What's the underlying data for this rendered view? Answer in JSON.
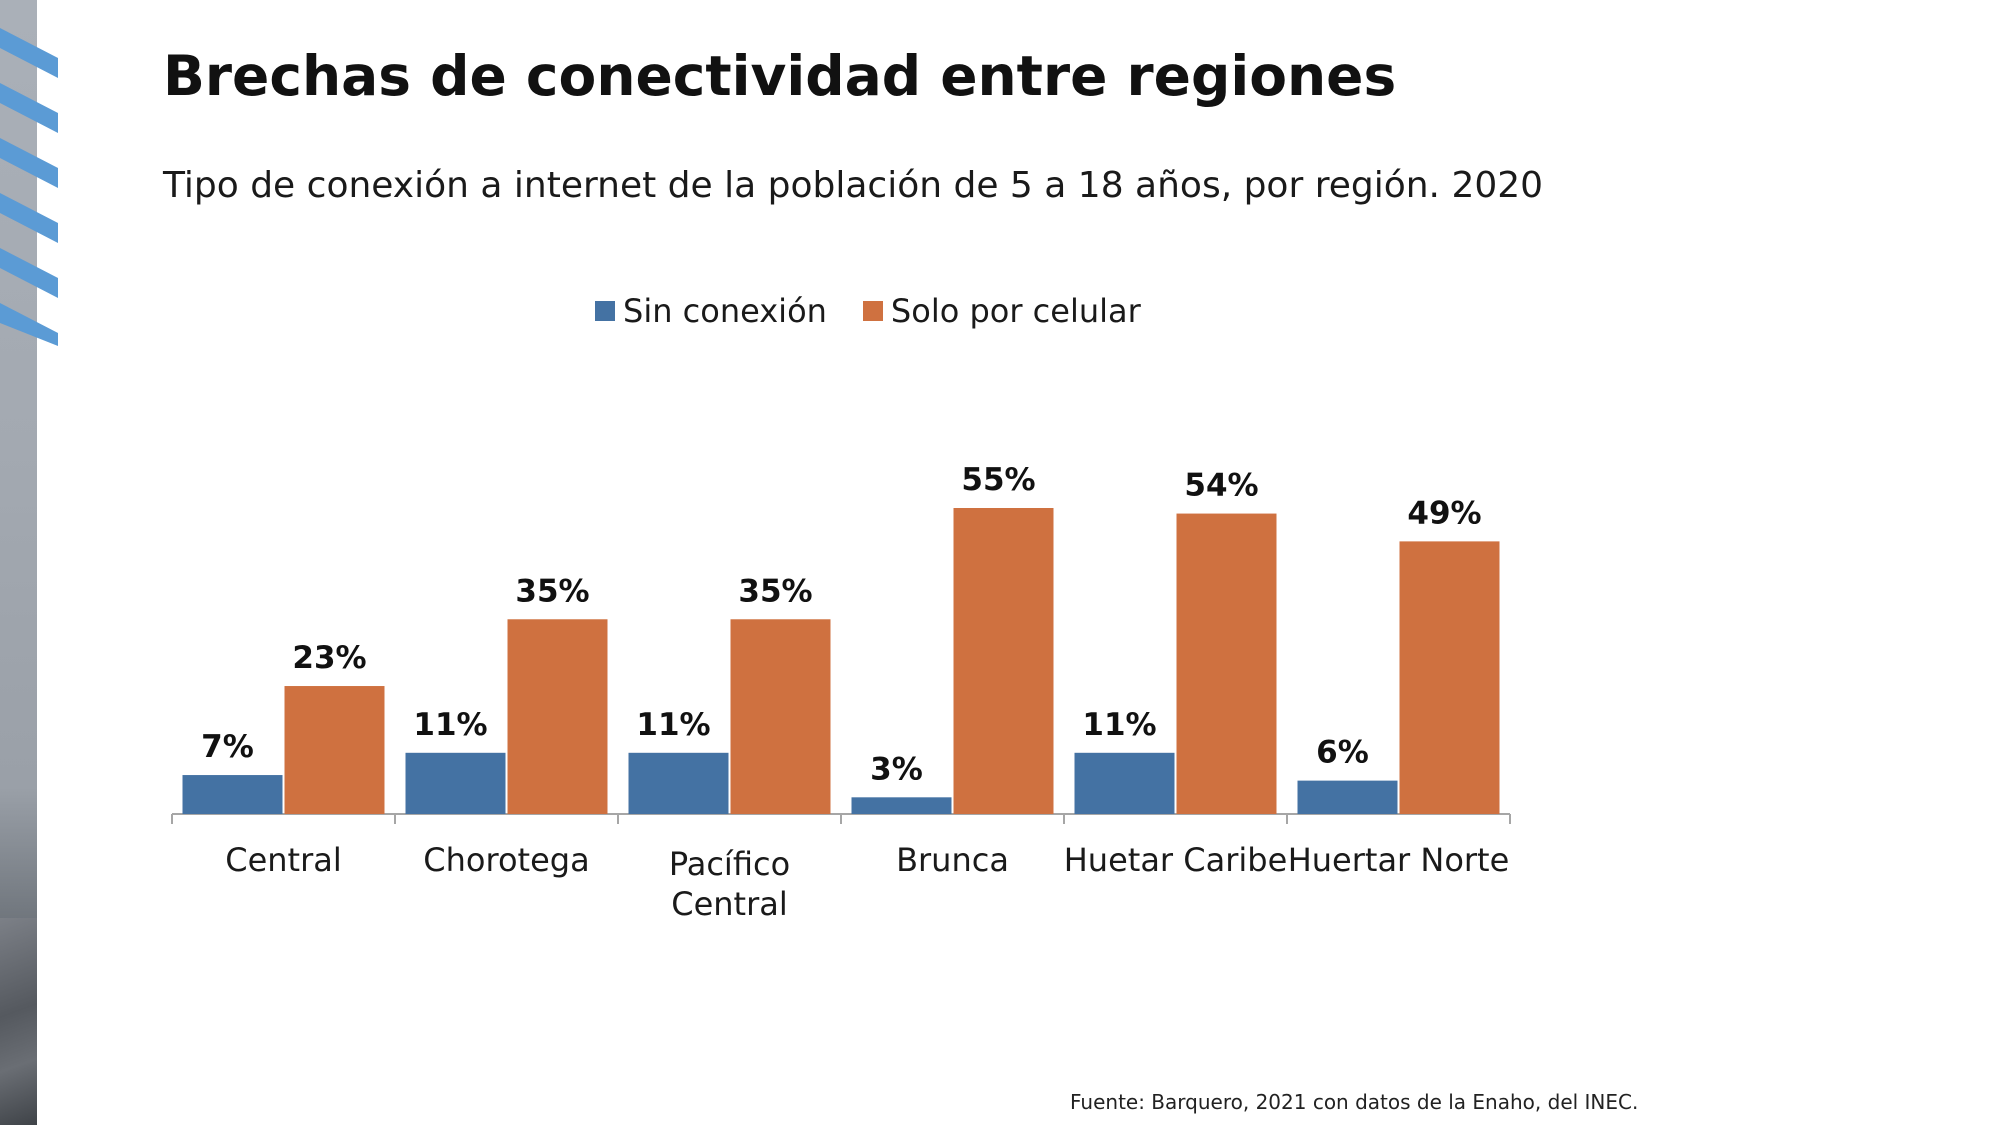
{
  "page": {
    "title": "Brechas de conectividad entre regiones",
    "subtitle": "Tipo de conexión a internet de la población de 5 a 18 años, por región. 2020",
    "source": "Fuente: Barquero, 2021 con datos de la Enaho, del INEC."
  },
  "colors": {
    "sin_conexion": "#4472a3",
    "solo_celular": "#cf7140",
    "accent_stripes": "#5b9bd5"
  },
  "chart_data": {
    "type": "bar",
    "categories": [
      "Central",
      "Chorotega",
      "Pacífico Central",
      "Brunca",
      "Huetar Caribe",
      "Huertar Norte"
    ],
    "series": [
      {
        "name": "Sin conexión",
        "values": [
          7,
          11,
          11,
          3,
          11,
          6
        ],
        "labels": [
          "7%",
          "11%",
          "11%",
          "3%",
          "11%",
          "6%"
        ]
      },
      {
        "name": "Solo por celular",
        "values": [
          23,
          35,
          35,
          55,
          54,
          49
        ],
        "labels": [
          "23%",
          "35%",
          "35%",
          "55%",
          "54%",
          "49%"
        ]
      }
    ],
    "ylim": [
      0,
      55
    ],
    "grid": false,
    "legend_position": "top",
    "title": "",
    "xlabel": "",
    "ylabel": ""
  }
}
